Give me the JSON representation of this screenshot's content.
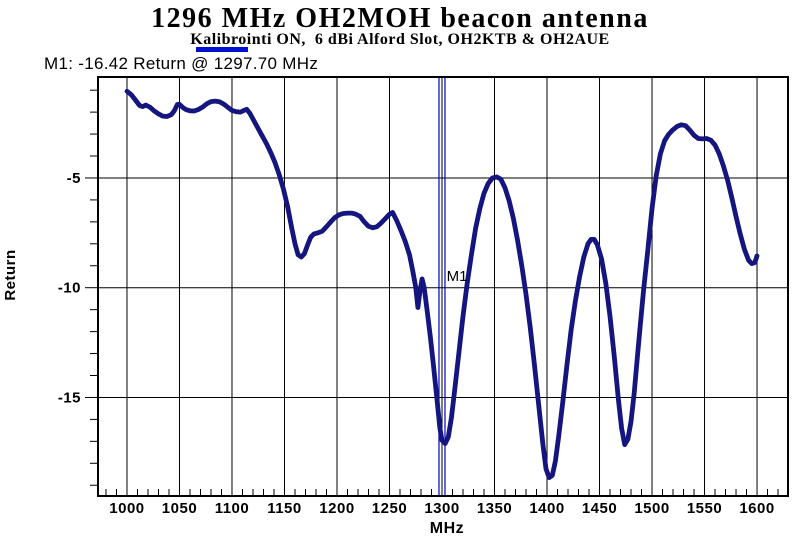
{
  "page": {
    "title": "1296 MHz OH2MOH beacon antenna",
    "subtitle": "Kalibrointi ON,  6 dBi Alford Slot, OH2KTB & OH2AUE",
    "marker_readout": "M1: -16.42 Return @ 1297.70 MHz"
  },
  "colors": {
    "background": "#ffffff",
    "curve": "#14157f",
    "marker_line": "#0000cc",
    "legend_swatch": "#0010d0",
    "grid": "#000000",
    "frame": "#000000",
    "text": "#000000"
  },
  "chart_data": {
    "type": "line",
    "title": "1296 MHz OH2MOH beacon antenna",
    "subtitle": "Kalibrointi ON,  6 dBi Alford Slot, OH2KTB & OH2AUE",
    "xlabel": "MHz",
    "ylabel": "Return",
    "xlim": [
      972.4,
      1629.5
    ],
    "ylim": [
      -19.49,
      -0.4
    ],
    "xticks": [
      1000,
      1050,
      1100,
      1150,
      1200,
      1250,
      1300,
      1350,
      1400,
      1450,
      1500,
      1550,
      1600
    ],
    "xminor": {
      "start": 980,
      "end": 1620,
      "step": 10
    },
    "yticks": [
      -5,
      -10,
      -15
    ],
    "yminor": {
      "start": -19,
      "end": -1,
      "step": 1
    },
    "grid": true,
    "legend_position": "above-plot-top-left",
    "marker": {
      "label": "M1",
      "freq_mhz": 1297.7,
      "return_db": -16.42
    },
    "series": [
      {
        "name": "Return",
        "points": [
          [
            1000,
            -1.05
          ],
          [
            1004,
            -1.2
          ],
          [
            1008,
            -1.45
          ],
          [
            1012,
            -1.7
          ],
          [
            1015,
            -1.75
          ],
          [
            1018,
            -1.68
          ],
          [
            1022,
            -1.78
          ],
          [
            1026,
            -1.95
          ],
          [
            1030,
            -2.08
          ],
          [
            1034,
            -2.18
          ],
          [
            1038,
            -2.2
          ],
          [
            1042,
            -2.12
          ],
          [
            1045,
            -1.95
          ],
          [
            1048,
            -1.65
          ],
          [
            1050,
            -1.65
          ],
          [
            1053,
            -1.78
          ],
          [
            1056,
            -1.88
          ],
          [
            1060,
            -1.94
          ],
          [
            1064,
            -1.95
          ],
          [
            1068,
            -1.88
          ],
          [
            1072,
            -1.77
          ],
          [
            1076,
            -1.62
          ],
          [
            1080,
            -1.52
          ],
          [
            1084,
            -1.5
          ],
          [
            1088,
            -1.53
          ],
          [
            1092,
            -1.63
          ],
          [
            1096,
            -1.78
          ],
          [
            1100,
            -1.92
          ],
          [
            1104,
            -1.98
          ],
          [
            1108,
            -2.0
          ],
          [
            1111,
            -1.93
          ],
          [
            1114,
            -1.87
          ],
          [
            1117,
            -2.05
          ],
          [
            1121,
            -2.4
          ],
          [
            1125,
            -2.75
          ],
          [
            1129,
            -3.1
          ],
          [
            1133,
            -3.45
          ],
          [
            1137,
            -3.85
          ],
          [
            1141,
            -4.3
          ],
          [
            1145,
            -4.85
          ],
          [
            1149,
            -5.5
          ],
          [
            1153,
            -6.3
          ],
          [
            1157,
            -7.3
          ],
          [
            1160,
            -8.0
          ],
          [
            1163,
            -8.5
          ],
          [
            1166,
            -8.6
          ],
          [
            1169,
            -8.45
          ],
          [
            1172,
            -8.05
          ],
          [
            1175,
            -7.7
          ],
          [
            1178,
            -7.55
          ],
          [
            1182,
            -7.5
          ],
          [
            1186,
            -7.42
          ],
          [
            1190,
            -7.22
          ],
          [
            1194,
            -7.0
          ],
          [
            1198,
            -6.8
          ],
          [
            1202,
            -6.68
          ],
          [
            1206,
            -6.62
          ],
          [
            1210,
            -6.6
          ],
          [
            1214,
            -6.6
          ],
          [
            1218,
            -6.65
          ],
          [
            1222,
            -6.75
          ],
          [
            1226,
            -7.0
          ],
          [
            1230,
            -7.2
          ],
          [
            1234,
            -7.27
          ],
          [
            1238,
            -7.22
          ],
          [
            1242,
            -7.05
          ],
          [
            1246,
            -6.85
          ],
          [
            1250,
            -6.65
          ],
          [
            1253,
            -6.57
          ],
          [
            1257,
            -6.95
          ],
          [
            1261,
            -7.4
          ],
          [
            1265,
            -7.9
          ],
          [
            1269,
            -8.5
          ],
          [
            1272,
            -9.2
          ],
          [
            1275,
            -10.0
          ],
          [
            1277,
            -10.9
          ],
          [
            1279,
            -10.15
          ],
          [
            1281,
            -9.6
          ],
          [
            1283,
            -10.0
          ],
          [
            1286,
            -11.1
          ],
          [
            1289,
            -12.3
          ],
          [
            1292,
            -13.6
          ],
          [
            1295,
            -15.0
          ],
          [
            1298,
            -16.4
          ],
          [
            1300,
            -16.95
          ],
          [
            1303,
            -17.1
          ],
          [
            1306,
            -16.8
          ],
          [
            1309,
            -15.9
          ],
          [
            1312,
            -14.7
          ],
          [
            1316,
            -13.0
          ],
          [
            1320,
            -11.3
          ],
          [
            1324,
            -9.8
          ],
          [
            1328,
            -8.5
          ],
          [
            1332,
            -7.3
          ],
          [
            1336,
            -6.4
          ],
          [
            1340,
            -5.7
          ],
          [
            1344,
            -5.25
          ],
          [
            1348,
            -5.0
          ],
          [
            1352,
            -4.95
          ],
          [
            1356,
            -5.05
          ],
          [
            1360,
            -5.45
          ],
          [
            1364,
            -6.05
          ],
          [
            1368,
            -6.85
          ],
          [
            1372,
            -7.85
          ],
          [
            1376,
            -9.0
          ],
          [
            1380,
            -10.3
          ],
          [
            1384,
            -11.8
          ],
          [
            1388,
            -13.5
          ],
          [
            1392,
            -15.3
          ],
          [
            1396,
            -17.1
          ],
          [
            1399,
            -18.25
          ],
          [
            1402,
            -18.65
          ],
          [
            1405,
            -18.55
          ],
          [
            1408,
            -17.9
          ],
          [
            1411,
            -16.8
          ],
          [
            1415,
            -15.2
          ],
          [
            1419,
            -13.5
          ],
          [
            1423,
            -11.9
          ],
          [
            1427,
            -10.6
          ],
          [
            1431,
            -9.5
          ],
          [
            1435,
            -8.6
          ],
          [
            1439,
            -8.0
          ],
          [
            1442,
            -7.8
          ],
          [
            1445,
            -7.8
          ],
          [
            1448,
            -8.05
          ],
          [
            1452,
            -8.7
          ],
          [
            1456,
            -9.8
          ],
          [
            1460,
            -11.3
          ],
          [
            1464,
            -13.1
          ],
          [
            1468,
            -15.1
          ],
          [
            1471,
            -16.4
          ],
          [
            1474,
            -17.15
          ],
          [
            1477,
            -16.9
          ],
          [
            1480,
            -16.1
          ],
          [
            1483,
            -14.8
          ],
          [
            1486,
            -13.2
          ],
          [
            1489,
            -11.6
          ],
          [
            1492,
            -10.1
          ],
          [
            1496,
            -8.3
          ],
          [
            1500,
            -6.4
          ],
          [
            1504,
            -4.9
          ],
          [
            1508,
            -3.9
          ],
          [
            1512,
            -3.3
          ],
          [
            1516,
            -3.0
          ],
          [
            1520,
            -2.8
          ],
          [
            1524,
            -2.65
          ],
          [
            1528,
            -2.58
          ],
          [
            1532,
            -2.62
          ],
          [
            1536,
            -2.82
          ],
          [
            1540,
            -3.05
          ],
          [
            1544,
            -3.2
          ],
          [
            1548,
            -3.22
          ],
          [
            1552,
            -3.2
          ],
          [
            1556,
            -3.28
          ],
          [
            1560,
            -3.5
          ],
          [
            1564,
            -3.9
          ],
          [
            1568,
            -4.45
          ],
          [
            1572,
            -5.1
          ],
          [
            1576,
            -5.9
          ],
          [
            1580,
            -6.75
          ],
          [
            1584,
            -7.55
          ],
          [
            1588,
            -8.25
          ],
          [
            1592,
            -8.75
          ],
          [
            1595,
            -8.9
          ],
          [
            1598,
            -8.85
          ],
          [
            1600,
            -8.55
          ]
        ]
      }
    ]
  }
}
